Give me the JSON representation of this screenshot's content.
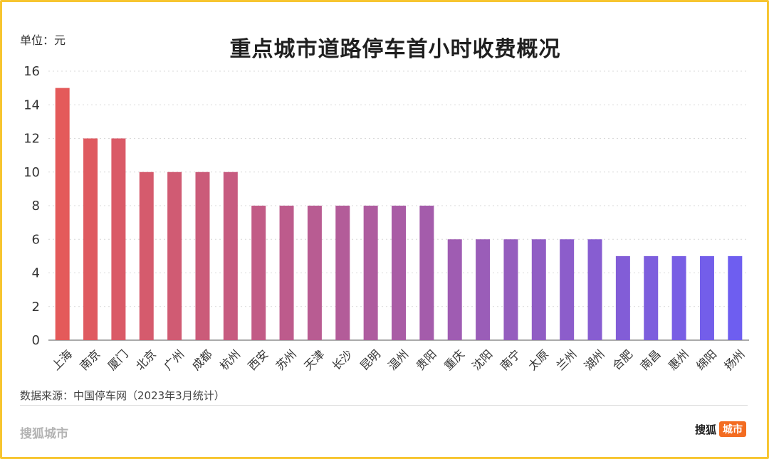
{
  "header": {
    "unit_label": "单位：元"
  },
  "footer": {
    "source": "数据来源：中国停车网（2023年3月统计）",
    "brand_left": "搜狐城市",
    "brand_right": "搜狐",
    "brand_badge": "城市",
    "brand_badge_color": "#f36c21"
  },
  "frame_color": "#f7c530",
  "chart_data": {
    "type": "bar",
    "title": "重点城市道路停车首小时收费概况",
    "xlabel": "",
    "ylabel": "单位：元",
    "ylim": [
      0,
      16
    ],
    "yticks": [
      0,
      2,
      4,
      6,
      8,
      10,
      12,
      14,
      16
    ],
    "grid": true,
    "gradient_start": "#e45a5a",
    "gradient_end": "#6e5ef0",
    "categories": [
      "上海",
      "南京",
      "厦门",
      "北京",
      "广州",
      "成都",
      "杭州",
      "西安",
      "苏州",
      "天津",
      "长沙",
      "昆明",
      "温州",
      "贵阳",
      "重庆",
      "沈阳",
      "南宁",
      "太原",
      "兰州",
      "湖州",
      "合肥",
      "南昌",
      "惠州",
      "绵阳",
      "扬州"
    ],
    "values": [
      15,
      12,
      12,
      10,
      10,
      10,
      10,
      8,
      8,
      8,
      8,
      8,
      8,
      8,
      6,
      6,
      6,
      6,
      6,
      6,
      5,
      5,
      5,
      5,
      5
    ]
  }
}
